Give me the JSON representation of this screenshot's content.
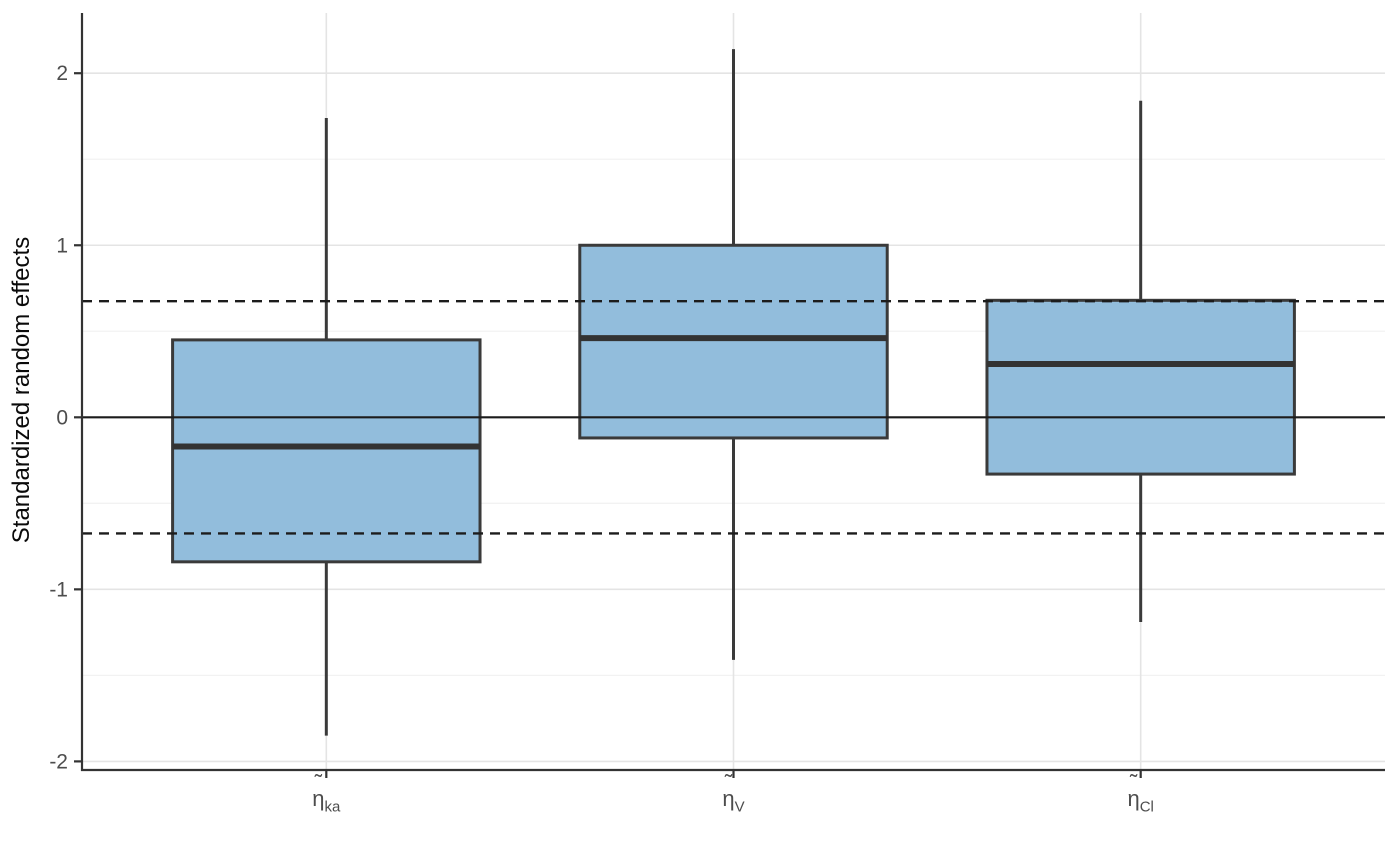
{
  "chart_data": {
    "type": "boxplot",
    "title": "",
    "xlabel": "",
    "ylabel": "Standardized random effects",
    "categories": [
      {
        "symbol": "η",
        "accent": "˜",
        "sub": "ka"
      },
      {
        "symbol": "η",
        "accent": "˜",
        "sub": "V"
      },
      {
        "symbol": "η",
        "accent": "˜",
        "sub": "Cl"
      }
    ],
    "series": [
      {
        "name": "eta_ka",
        "whisker_low": -1.85,
        "q1": -0.84,
        "median": -0.17,
        "q3": 0.45,
        "whisker_high": 1.74,
        "outliers": []
      },
      {
        "name": "eta_V",
        "whisker_low": -1.41,
        "q1": -0.12,
        "median": 0.46,
        "q3": 1.0,
        "whisker_high": 2.14,
        "outliers": []
      },
      {
        "name": "eta_Cl",
        "whisker_low": -1.19,
        "q1": -0.33,
        "median": 0.31,
        "q3": 0.68,
        "whisker_high": 1.84,
        "outliers": []
      }
    ],
    "ylim": [
      -2.05,
      2.35
    ],
    "yticks": [
      "-2",
      "-1",
      "0",
      "1",
      "2"
    ],
    "ytick_values": [
      -2,
      -1,
      0,
      1,
      2
    ],
    "yminor_values": [
      -1.5,
      -0.5,
      0.5,
      1.5
    ],
    "reference_lines": [
      {
        "y": 0,
        "style": "solid"
      },
      {
        "y": 0.675,
        "style": "dashed"
      },
      {
        "y": -0.675,
        "style": "dashed"
      }
    ],
    "grid": true,
    "legend": false,
    "colors": {
      "box_fill": "#92BDDC",
      "box_border": "#3A3A3A",
      "median": "#333333",
      "whisker": "#3A3A3A",
      "grid_major": "#E4E4E4",
      "grid_minor": "#F2F2F2",
      "axis_line": "#333333",
      "tick_mark": "#333333",
      "tick_label": "#4D4D4D",
      "axis_title": "#0A0A0A",
      "ref_line": "#1C1C1C",
      "background": "#FFFFFF"
    }
  }
}
